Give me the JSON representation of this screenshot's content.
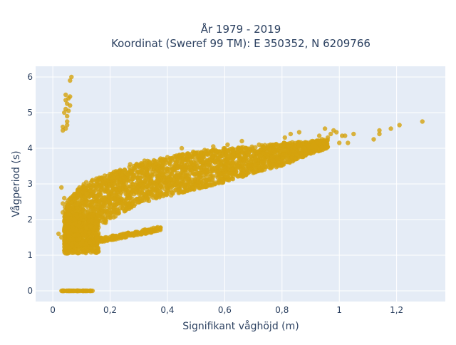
{
  "chart_data": {
    "type": "scatter",
    "title_line1": "År 1979 - 2019",
    "title_line2": "Koordinat (Sweref 99 TM): E 350352, N 6209766",
    "xlabel": "Signifikant våghöjd (m)",
    "ylabel": "Vågperiod (s)",
    "xlim": [
      -0.06,
      1.37
    ],
    "ylim": [
      -0.3,
      6.3
    ],
    "xticks": [
      0,
      0.2,
      0.4,
      0.6,
      0.8,
      1,
      1.2
    ],
    "xtick_labels": [
      "0",
      "0,2",
      "0,4",
      "0,6",
      "0,8",
      "1",
      "1,2"
    ],
    "yticks": [
      0,
      1,
      2,
      3,
      4,
      5,
      6
    ],
    "ytick_labels": [
      "0",
      "1",
      "2",
      "3",
      "4",
      "5",
      "6"
    ],
    "grid": true,
    "colors": {
      "marker": "#d4a20e",
      "plot_bg": "#e5ecf6",
      "grid": "#ffffff"
    },
    "points_outliers": [
      [
        0.035,
        4.5
      ],
      [
        0.035,
        4.6
      ],
      [
        0.045,
        4.55
      ],
      [
        0.05,
        4.65
      ],
      [
        0.05,
        4.9
      ],
      [
        0.04,
        5.0
      ],
      [
        0.045,
        5.1
      ],
      [
        0.05,
        5.25
      ],
      [
        0.045,
        5.35
      ],
      [
        0.055,
        5.4
      ],
      [
        0.06,
        5.45
      ],
      [
        0.06,
        5.2
      ],
      [
        0.05,
        4.75
      ],
      [
        0.055,
        5.05
      ],
      [
        0.045,
        5.5
      ],
      [
        0.06,
        5.9
      ],
      [
        0.065,
        6.0
      ],
      [
        0.03,
        2.9
      ],
      [
        0.035,
        2.45
      ],
      [
        0.035,
        2.2
      ],
      [
        0.04,
        2.6
      ],
      [
        0.05,
        2.35
      ],
      [
        0.055,
        2.15
      ],
      [
        0.02,
        1.6
      ],
      [
        0.03,
        1.5
      ],
      [
        1.29,
        4.75
      ],
      [
        1.21,
        4.65
      ],
      [
        1.18,
        4.55
      ],
      [
        1.14,
        4.5
      ],
      [
        1.14,
        4.4
      ],
      [
        1.12,
        4.25
      ],
      [
        1.05,
        4.4
      ],
      [
        1.02,
        4.35
      ],
      [
        1.01,
        4.35
      ],
      [
        0.99,
        4.45
      ],
      [
        0.98,
        4.5
      ],
      [
        0.97,
        4.4
      ],
      [
        0.96,
        4.3
      ],
      [
        0.95,
        4.55
      ],
      [
        0.93,
        4.35
      ],
      [
        1.0,
        4.15
      ],
      [
        1.03,
        4.15
      ],
      [
        0.94,
        4.25
      ],
      [
        0.86,
        4.45
      ],
      [
        0.83,
        4.4
      ],
      [
        0.81,
        4.3
      ],
      [
        0.66,
        4.2
      ],
      [
        0.72,
        4.1
      ],
      [
        0.61,
        4.1
      ],
      [
        0.6,
        4.0
      ],
      [
        0.56,
        4.05
      ],
      [
        0.53,
        3.95
      ],
      [
        0.45,
        4.0
      ],
      [
        0.49,
        3.9
      ],
      [
        0.32,
        3.65
      ],
      [
        0.4,
        3.75
      ],
      [
        0.27,
        3.55
      ],
      [
        0.43,
        3.6
      ]
    ],
    "band_zero": {
      "x_from": 0.03,
      "x_to": 0.14,
      "y": 0
    },
    "band_secondary": {
      "x_from": 0.05,
      "x_to": 0.38,
      "y_from": 1.25,
      "y_to": 1.75
    },
    "band_main_x": [
      0.04,
      0.1,
      0.2,
      0.3,
      0.4,
      0.5,
      0.6,
      0.7,
      0.8,
      0.9,
      0.96
    ],
    "band_main_lower": [
      1.05,
      1.4,
      2.0,
      2.45,
      2.65,
      2.85,
      3.05,
      3.3,
      3.5,
      3.85,
      4.0
    ],
    "band_main_upper": [
      2.4,
      3.0,
      3.3,
      3.6,
      3.75,
      3.9,
      4.0,
      4.05,
      4.15,
      4.2,
      4.25
    ]
  }
}
